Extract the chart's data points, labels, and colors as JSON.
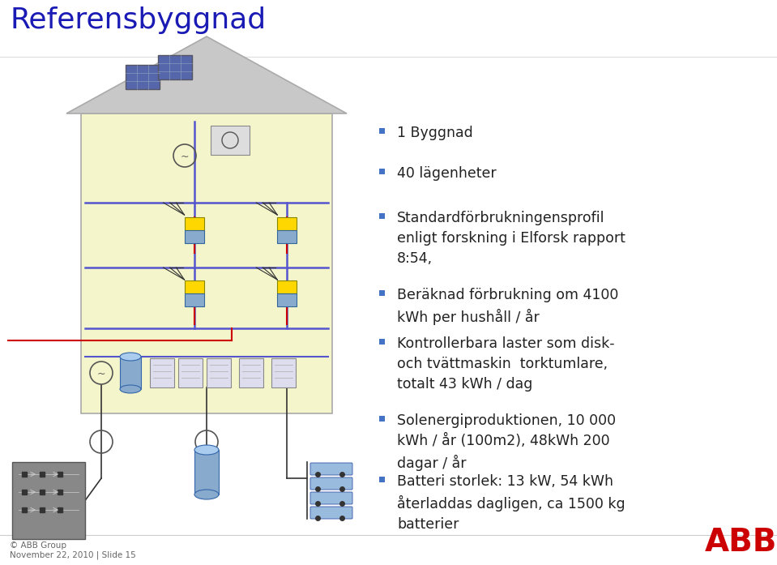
{
  "title": "Referensbyggnad",
  "title_color": "#1A1AB4",
  "title_fontsize": 26,
  "background_color": "#ffffff",
  "bullet_color": "#4472C4",
  "bullet_fontsize": 12.5,
  "bullets": [
    "1 Byggnad",
    "40 lägenheter",
    "Standardförbrukningensprofil\nenligt forskning i Elforsk rapport\n8:54,",
    "Beräknad förbrukning om 4100\nkWh per hushåll / år",
    "Kontrollerbara laster som disk-\noch tvättmaskin  torktumlare,\ntotalt 43 kWh / dag",
    "Solenergiproduktionen, 10 000\nkWh / år (100m2), 48kWh 200\ndagar / år",
    "Batteri storlek: 13 kW, 54 kWh\nåterladdas dagligen, ca 1500 kg\nbatterier"
  ],
  "footer_left": "© ABB Group\nNovember 22, 2010 | Slide 15",
  "footer_fontsize": 7.5,
  "abb_red": "#CC0000",
  "house_fill": "#F5F5CC",
  "house_edge": "#AAAAAA",
  "roof_fill": "#C8C8C8",
  "wire_blue": "#5555CC",
  "wire_red": "#CC0000",
  "wire_black": "#333333",
  "yellow_box": "#FFD700",
  "box_blue": "#88AACC",
  "meter_fill": "#CCDDEE",
  "panel_fill": "#888888"
}
